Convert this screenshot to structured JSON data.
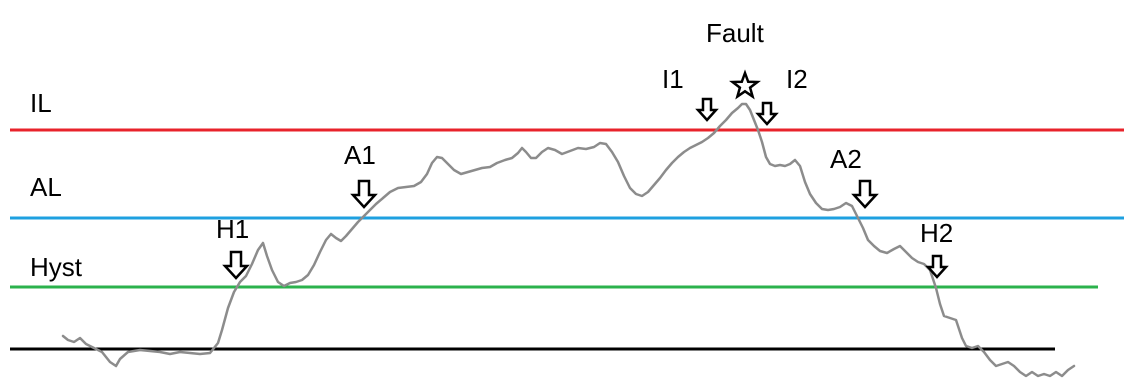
{
  "levels": {
    "il": {
      "label": "IL",
      "color": "#e8232b"
    },
    "al": {
      "label": "AL",
      "color": "#1ea0e0"
    },
    "hyst": {
      "label": "Hyst",
      "color": "#2bb24c"
    },
    "base": {
      "color": "#000000"
    }
  },
  "signal": {
    "color": "#8c8c8c"
  },
  "markers": {
    "h1": {
      "label": "H1",
      "icon": "down-arrow-icon"
    },
    "a1": {
      "label": "A1",
      "icon": "down-arrow-icon"
    },
    "i1": {
      "label": "I1",
      "icon": "down-arrow-icon"
    },
    "fault": {
      "label": "Fault",
      "icon": "star-icon"
    },
    "i2": {
      "label": "I2",
      "icon": "down-arrow-icon"
    },
    "a2": {
      "label": "A2",
      "icon": "down-arrow-icon"
    },
    "h2": {
      "label": "H2",
      "icon": "down-arrow-icon"
    }
  }
}
